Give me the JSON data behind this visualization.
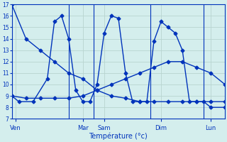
{
  "background_color": "#d4eeed",
  "line_color": "#0033bb",
  "grid_color": "#b8d4d0",
  "xlabel": "Température (°c)",
  "ylim": [
    7,
    17
  ],
  "yticks": [
    7,
    8,
    9,
    10,
    11,
    12,
    13,
    14,
    15,
    16,
    17
  ],
  "xlim": [
    0,
    30
  ],
  "day_labels": [
    "Ven",
    "Mar",
    "Sam",
    "Dim",
    "Lun"
  ],
  "day_tick_x": [
    0.5,
    10,
    13,
    21,
    28
  ],
  "vline_x": [
    8,
    11.5,
    19.5,
    27
  ],
  "s1_x": [
    0,
    2,
    4,
    6,
    8,
    10,
    12,
    14,
    16,
    18,
    20,
    22,
    24,
    26,
    28,
    30
  ],
  "s1_y": [
    17,
    14,
    13,
    12,
    11,
    10.5,
    9.5,
    9,
    8.8,
    8.5,
    8.5,
    8.5,
    8.5,
    8.5,
    8.5,
    8.5
  ],
  "s2_x": [
    0,
    2,
    4,
    6,
    8,
    10,
    12,
    14,
    16,
    18,
    20,
    22,
    24,
    26,
    28,
    30
  ],
  "s2_y": [
    9,
    8.8,
    8.8,
    8.8,
    8.8,
    9,
    9.5,
    10,
    10.5,
    11,
    11.5,
    12,
    12,
    11.5,
    11,
    10
  ],
  "s3_x": [
    0,
    1,
    3,
    5,
    6,
    7,
    8,
    9,
    10,
    11,
    12,
    13,
    14,
    15,
    16,
    17,
    18,
    19,
    20,
    21,
    22,
    23,
    24,
    25,
    26,
    27,
    28,
    30
  ],
  "s3_y": [
    9,
    8.5,
    8.5,
    10.5,
    15.5,
    16,
    14,
    9.5,
    8.5,
    8.5,
    10,
    14.5,
    16,
    15.8,
    11,
    8.5,
    8.5,
    8.5,
    13.8,
    15.5,
    15,
    14.5,
    13,
    8.5,
    8.5,
    8.5,
    8,
    8
  ]
}
